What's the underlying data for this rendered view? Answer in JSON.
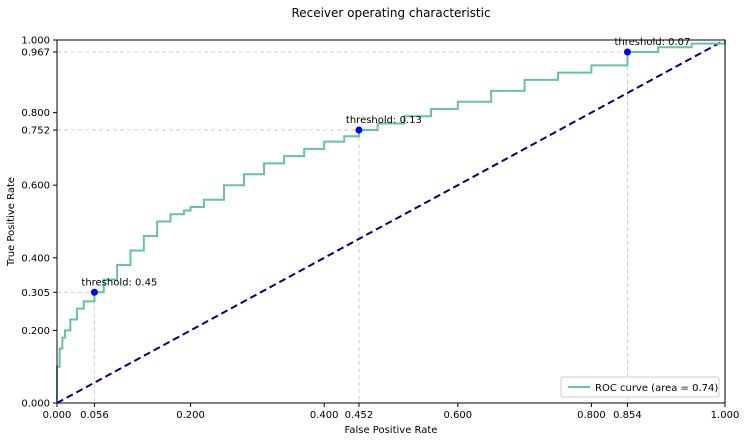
{
  "chart_data": {
    "type": "line",
    "title": "Receiver operating characteristic",
    "xlabel": "False Positive Rate",
    "ylabel": "True Positive Rate",
    "xlim": [
      0,
      1
    ],
    "ylim": [
      0,
      1
    ],
    "xticks": [
      0.0,
      0.056,
      0.2,
      0.4,
      0.452,
      0.6,
      0.8,
      0.854,
      1.0
    ],
    "xtick_labels": [
      "0.000",
      "0.056",
      "0.200",
      "0.400",
      "0.452",
      "0.600",
      "0.800",
      "0.854",
      "1.000"
    ],
    "yticks": [
      0.0,
      0.2,
      0.305,
      0.4,
      0.6,
      0.752,
      0.8,
      0.967,
      1.0
    ],
    "ytick_labels": [
      "0.000",
      "0.200",
      "0.305",
      "0.400",
      "0.600",
      "0.752",
      "0.800",
      "0.967",
      "1.000"
    ],
    "grid": "dashed reference lines at threshold points",
    "legend_position": "bottom-right",
    "colors": {
      "roc": "#66c2a5",
      "diagonal": "#000080",
      "marker": "#0000ff",
      "guide": "#cccccc"
    },
    "series": [
      {
        "name": "ROC curve (area = 0.74)",
        "style": "solid",
        "x": [
          0.0,
          0.0,
          0.004,
          0.008,
          0.012,
          0.02,
          0.03,
          0.04,
          0.056,
          0.07,
          0.09,
          0.11,
          0.13,
          0.15,
          0.17,
          0.19,
          0.2,
          0.22,
          0.25,
          0.28,
          0.31,
          0.34,
          0.37,
          0.4,
          0.43,
          0.452,
          0.48,
          0.52,
          0.56,
          0.6,
          0.65,
          0.7,
          0.75,
          0.8,
          0.854,
          0.9,
          0.95,
          1.0
        ],
        "y": [
          0.0,
          0.1,
          0.15,
          0.18,
          0.2,
          0.23,
          0.26,
          0.28,
          0.305,
          0.34,
          0.38,
          0.42,
          0.46,
          0.5,
          0.52,
          0.53,
          0.54,
          0.56,
          0.6,
          0.63,
          0.66,
          0.68,
          0.7,
          0.72,
          0.735,
          0.752,
          0.77,
          0.79,
          0.81,
          0.83,
          0.86,
          0.89,
          0.91,
          0.93,
          0.967,
          0.98,
          0.99,
          1.0
        ]
      },
      {
        "style": "dashed",
        "x": [
          0,
          1
        ],
        "y": [
          0,
          1
        ]
      }
    ],
    "markers": [
      {
        "x": 0.056,
        "y": 0.305,
        "label": "threshold: 0.45"
      },
      {
        "x": 0.452,
        "y": 0.752,
        "label": "threshold: 0.13"
      },
      {
        "x": 0.854,
        "y": 0.967,
        "label": "threshold: 0.07"
      }
    ]
  }
}
